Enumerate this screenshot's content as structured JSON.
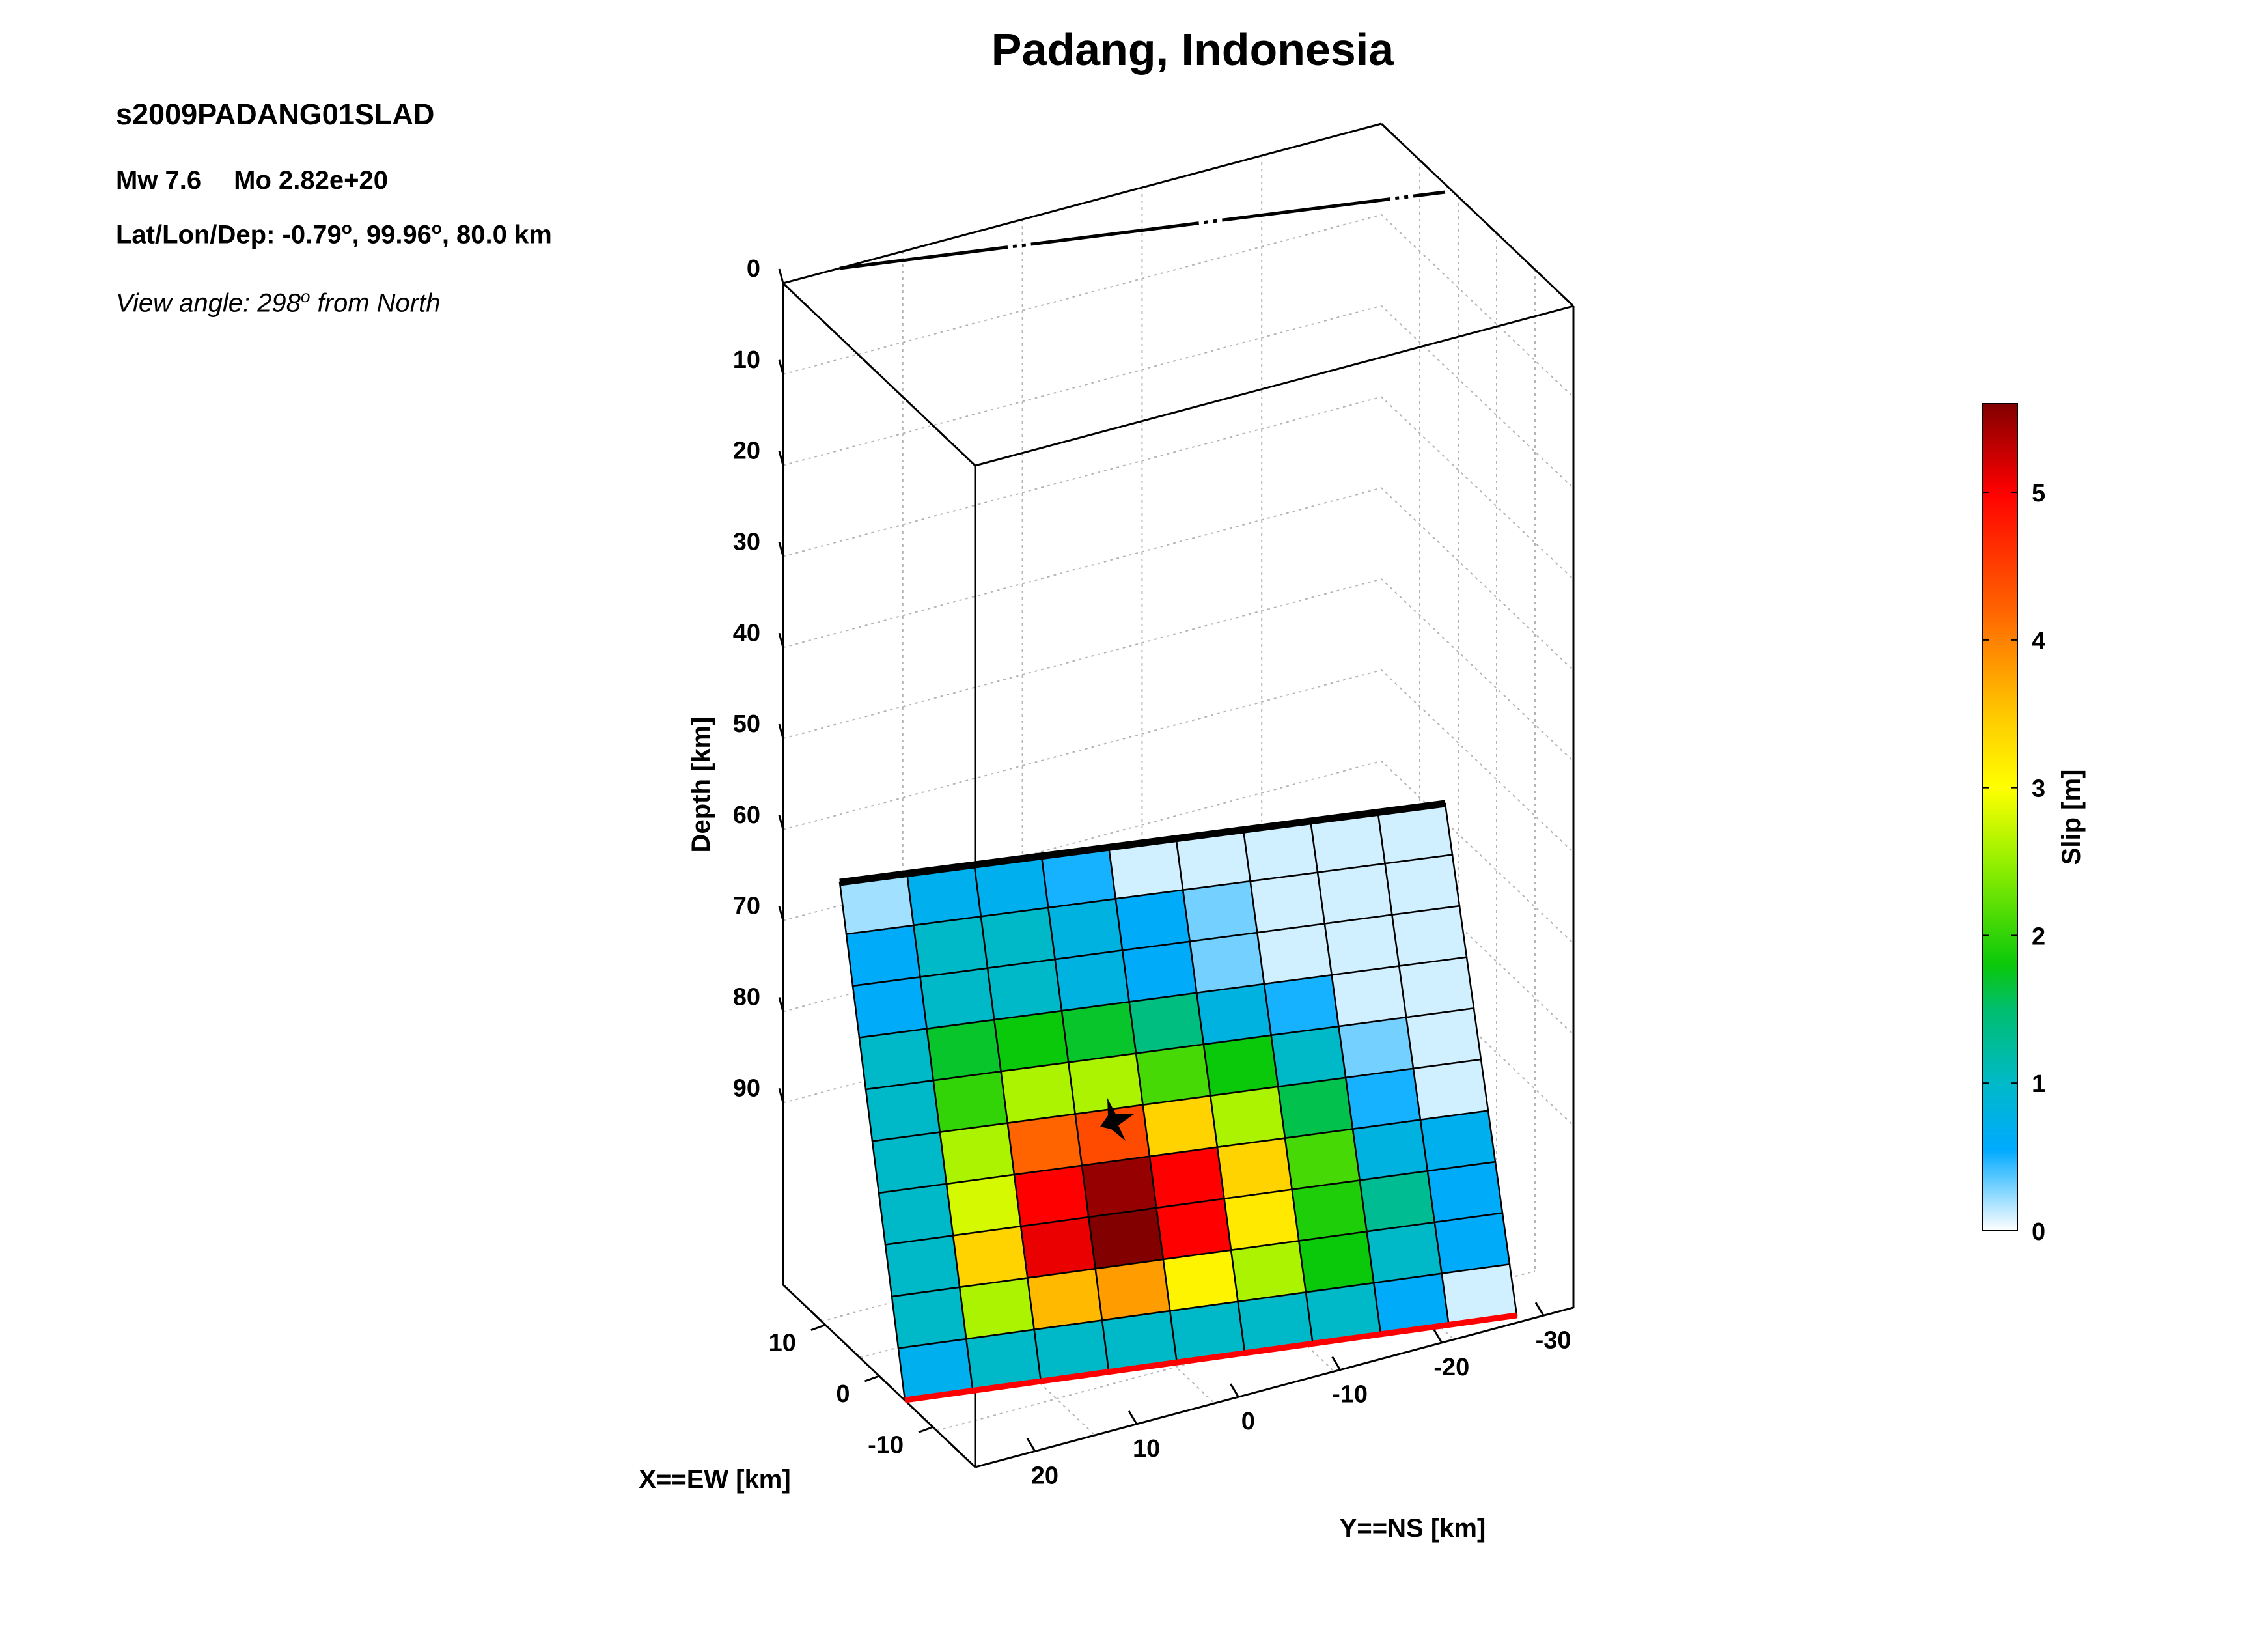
{
  "header": {
    "event_id": "s2009PADANG01SLAD",
    "mw_label": "Mw 7.6",
    "mo_label": "Mo 2.82e+20",
    "loc_prefix": "Lat/Lon/Dep: -0.79",
    "loc_mid": ", 99.96",
    "loc_suffix": ", 80.0 km",
    "degree_sign": "o",
    "view_prefix": "View angle: 298",
    "view_suffix": " from North"
  },
  "chart_data": {
    "type": "heatmap",
    "title": "Padang, Indonesia",
    "zlabel": "Depth [km]",
    "xlabel": "X==EW [km]",
    "ylabel": "Y==NS [km]",
    "z_ticks": [
      "0",
      "10",
      "20",
      "30",
      "40",
      "50",
      "60",
      "70",
      "80",
      "90"
    ],
    "x_ticks": [
      "10",
      "0",
      "-10"
    ],
    "y_ticks": [
      "20",
      "10",
      "0",
      "-10",
      "-20",
      "-30"
    ],
    "colorbar": {
      "label": "Slip [m]",
      "range": [
        0,
        5.6
      ],
      "ticks": [
        "0",
        "1",
        "2",
        "3",
        "4",
        "5"
      ]
    },
    "grid_on": true,
    "slip_grid": [
      [
        0.2,
        0.7,
        0.7,
        0.5,
        0.1,
        0.1,
        0.1,
        0.1,
        0.1
      ],
      [
        0.6,
        1.0,
        1.0,
        0.8,
        0.6,
        0.3,
        0.1,
        0.1,
        0.1
      ],
      [
        0.6,
        1.0,
        1.0,
        0.8,
        0.6,
        0.3,
        0.1,
        0.1,
        0.1
      ],
      [
        1.0,
        1.7,
        1.8,
        1.7,
        1.4,
        0.8,
        0.5,
        0.1,
        0.1
      ],
      [
        1.0,
        2.0,
        2.6,
        2.6,
        2.1,
        1.8,
        1.0,
        0.3,
        0.1
      ],
      [
        1.0,
        2.6,
        4.2,
        4.4,
        3.4,
        2.6,
        1.6,
        0.5,
        0.1
      ],
      [
        1.0,
        2.8,
        5.0,
        5.5,
        5.0,
        3.4,
        2.1,
        0.8,
        0.7
      ],
      [
        1.0,
        3.4,
        5.1,
        5.6,
        5.0,
        3.2,
        1.9,
        1.3,
        0.6
      ],
      [
        1.0,
        2.6,
        3.6,
        3.8,
        3.1,
        2.6,
        1.8,
        1.0,
        0.6
      ],
      [
        0.7,
        1.0,
        1.0,
        1.0,
        1.0,
        1.0,
        1.0,
        0.6,
        0.1
      ]
    ],
    "colors": {
      "top_edge": "#000000",
      "bottom_edge": "#ff0000",
      "grid_line": "#b4b4b4"
    }
  }
}
